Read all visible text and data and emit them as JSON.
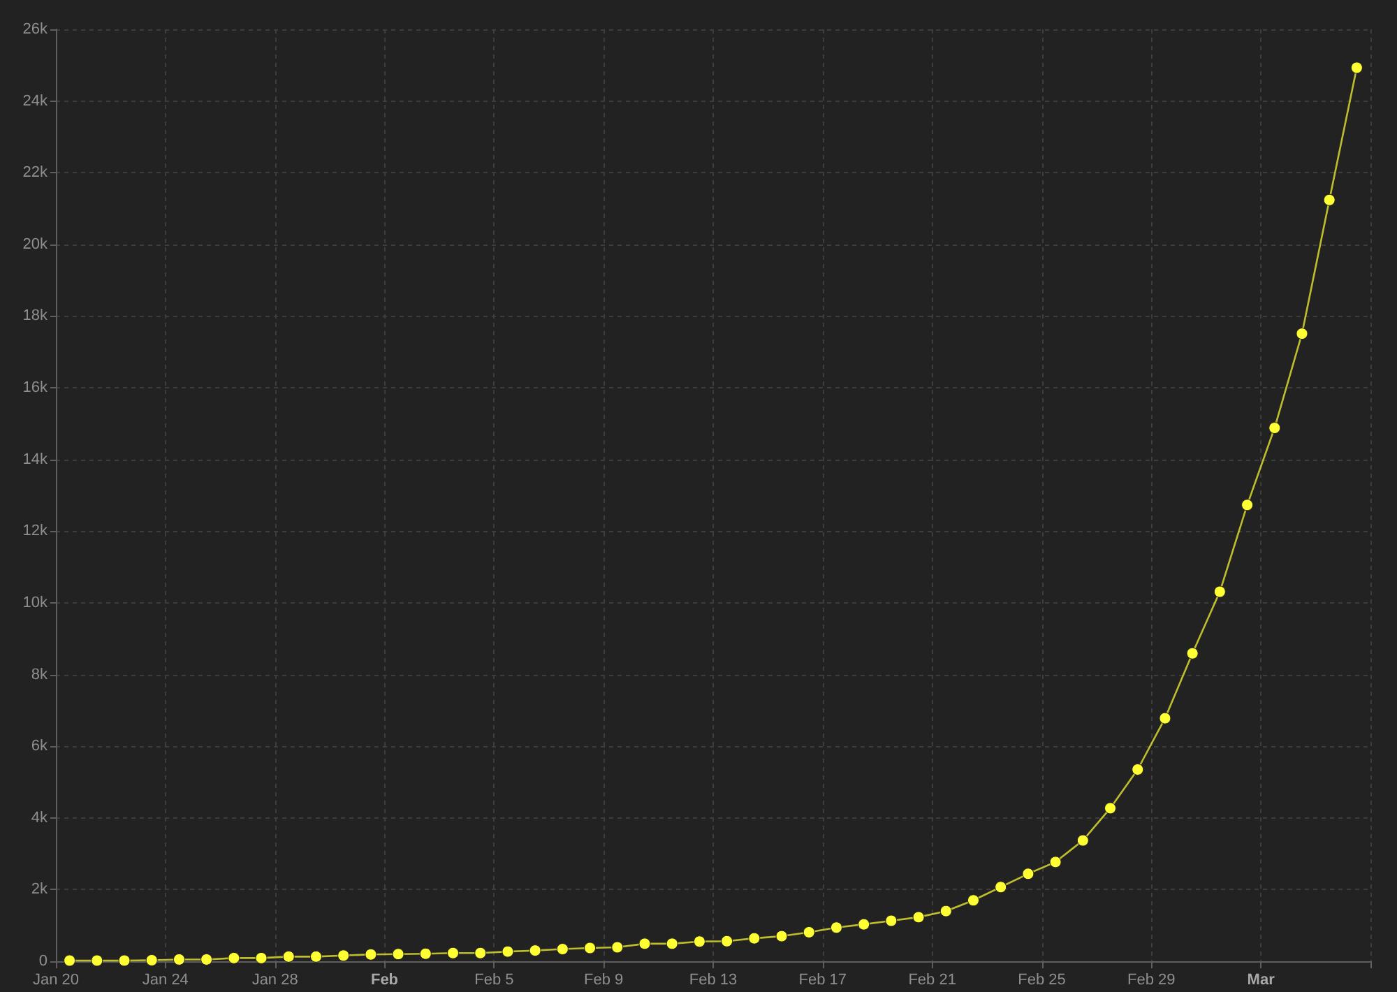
{
  "chart_data": {
    "type": "line",
    "x": [
      "--01-20T12:00",
      "--01-21T12:00",
      "--01-22T12:00",
      "--01-23T12:00",
      "--01-24T12:00",
      "--01-25T12:00",
      "--01-26T12:00",
      "--01-27T12:00",
      "--01-28T12:00",
      "--01-29T12:00",
      "--01-30T12:00",
      "--01-31T12:00",
      "--02-01T12:00",
      "--02-02T12:00",
      "--02-03T12:00",
      "--02-04T12:00",
      "--02-05T12:00",
      "--02-06T12:00",
      "--02-07T12:00",
      "--02-08T12:00",
      "--02-09T12:00",
      "--02-10T12:00",
      "--02-11T12:00",
      "--02-12T12:00",
      "--02-13T12:00",
      "--02-14T12:00",
      "--02-15T12:00",
      "--02-16T12:00",
      "--02-17T12:00",
      "--02-18T12:00",
      "--02-19T12:00",
      "--02-20T12:00",
      "--02-21T12:00",
      "--02-22T12:00",
      "--02-23T12:00",
      "--02-24T12:00",
      "--02-25T12:00",
      "--02-26T12:00",
      "--02-27T12:00",
      "--02-28T12:00",
      "--02-29T12:00",
      "--03-01T12:00",
      "--03-02T12:00",
      "--03-03T12:00",
      "--03-04T12:00",
      "--03-05T12:00",
      "--03-06T12:00",
      "--03-07T12:00"
    ],
    "series": [
      {
        "color": "#ffff33",
        "values": [
          20,
          20,
          20,
          30,
          50,
          50,
          90,
          90,
          130,
          130,
          160,
          190,
          200,
          210,
          230,
          230,
          270,
          300,
          340,
          370,
          390,
          490,
          490,
          550,
          560,
          640,
          700,
          810,
          940,
          1030,
          1130,
          1230,
          1400,
          1700,
          2070,
          2440,
          2770,
          3370,
          4270,
          5350,
          6780,
          8590,
          10310,
          12730,
          14880,
          17510,
          21240,
          24930
        ]
      }
    ],
    "xlim": [
      "--01-20",
      "--03-08"
    ],
    "xticks": [
      {
        "value": "--01-20",
        "label": "Jan 20"
      },
      {
        "value": "--01-24",
        "label": "Jan 24"
      },
      {
        "value": "--01-28",
        "label": "Jan 28"
      },
      {
        "value": "--02-01",
        "label": "Feb"
      },
      {
        "value": "--02-05",
        "label": "Feb 5"
      },
      {
        "value": "--02-09",
        "label": "Feb 9"
      },
      {
        "value": "--02-13",
        "label": "Feb 13"
      },
      {
        "value": "--02-17",
        "label": "Feb 17"
      },
      {
        "value": "--02-21",
        "label": "Feb 21"
      },
      {
        "value": "--02-25",
        "label": "Feb 25"
      },
      {
        "value": "--02-29",
        "label": "Feb 29"
      },
      {
        "value": "--03-04",
        "label": "Mar"
      },
      {
        "value": "--03-08",
        "label": null
      }
    ],
    "ylim": [
      0,
      26000
    ],
    "yticks": [
      0,
      {
        "value": 2000,
        "label": "2k"
      },
      {
        "value": 4000,
        "label": "4k"
      },
      {
        "value": 6000,
        "label": "6k"
      },
      {
        "value": 8000,
        "label": "8k"
      },
      {
        "value": 10000,
        "label": "10k"
      },
      {
        "value": 12000,
        "label": "12k"
      },
      {
        "value": 14000,
        "label": "14k"
      },
      {
        "value": 16000,
        "label": "16k"
      },
      {
        "value": 18000,
        "label": "18k"
      },
      {
        "value": 20000,
        "label": "20k"
      },
      {
        "value": 22000,
        "label": "22k"
      },
      {
        "value": 24000,
        "label": "24k"
      },
      {
        "value": 26000,
        "label": "26k"
      }
    ],
    "grid": true,
    "marker": "circle",
    "line_style": "solid"
  }
}
